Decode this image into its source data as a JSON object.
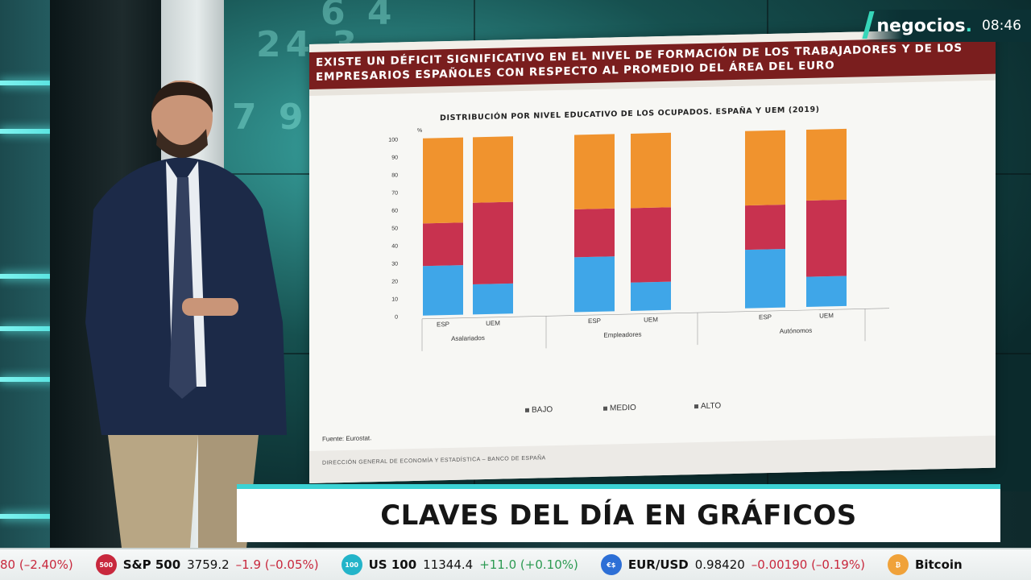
{
  "broadcast": {
    "brand": "negocios",
    "brand_dot": ".",
    "time": "08:46",
    "lower_third": "CLAVES DEL DÍA EN GRÁFICOS"
  },
  "slide": {
    "title": "EXISTE UN DÉFICIT SIGNIFICATIVO EN EL NIVEL DE FORMACIÓN DE LOS TRABAJADORES Y DE LOS\nEMPRESARIOS ESPAÑOLES CON RESPECTO AL PROMEDIO DEL ÁREA DEL EURO",
    "chart_title": "DISTRIBUCIÓN POR NIVEL EDUCATIVO DE LOS OCUPADOS. ESPAÑA Y UEM (2019)",
    "source": "Fuente: Eurostat.",
    "footer": "DIRECCIÓN GENERAL DE ECONOMÍA Y ESTADÍSTICA – BANCO DE ESPAÑA"
  },
  "chart_data": {
    "type": "bar",
    "stacked": true,
    "unit": "%",
    "ylim": [
      0,
      100
    ],
    "yticks": [
      0,
      10,
      20,
      30,
      40,
      50,
      60,
      70,
      80,
      90,
      100
    ],
    "groups": [
      "Asalariados",
      "Empleadores",
      "Autónomos"
    ],
    "categories": [
      "ESP",
      "UEM",
      "ESP",
      "UEM",
      "ESP",
      "UEM"
    ],
    "series": [
      {
        "name": "BAJO",
        "color": "#3fa6e8",
        "values": [
          28,
          17,
          31,
          16,
          33,
          17
        ]
      },
      {
        "name": "MEDIO",
        "color": "#c8324f",
        "values": [
          24,
          46,
          27,
          42,
          25,
          43
        ]
      },
      {
        "name": "ALTO",
        "color": "#f0932e",
        "values": [
          48,
          37,
          42,
          42,
          42,
          40
        ]
      }
    ],
    "legend_position": "bottom"
  },
  "ticker": [
    {
      "icon": "",
      "icon_color": "#c8283d",
      "name": "",
      "value": "",
      "change": "80 (–2.40%)",
      "trend": "neg"
    },
    {
      "icon": "500",
      "icon_color": "#c8283d",
      "name": "S&P 500",
      "value": "3759.2",
      "change": "–1.9 (–0.05%)",
      "trend": "neg"
    },
    {
      "icon": "100",
      "icon_color": "#23b4c9",
      "name": "US 100",
      "value": "11344.4",
      "change": "+11.0 (+0.10%)",
      "trend": "pos"
    },
    {
      "icon": "€$",
      "icon_color": "#2d6fd6",
      "name": "EUR/USD",
      "value": "0.98420",
      "change": "–0.00190 (–0.19%)",
      "trend": "neg"
    },
    {
      "icon": "₿",
      "icon_color": "#f0a23a",
      "name": "Bitcoin",
      "value": "",
      "change": "",
      "trend": ""
    }
  ]
}
